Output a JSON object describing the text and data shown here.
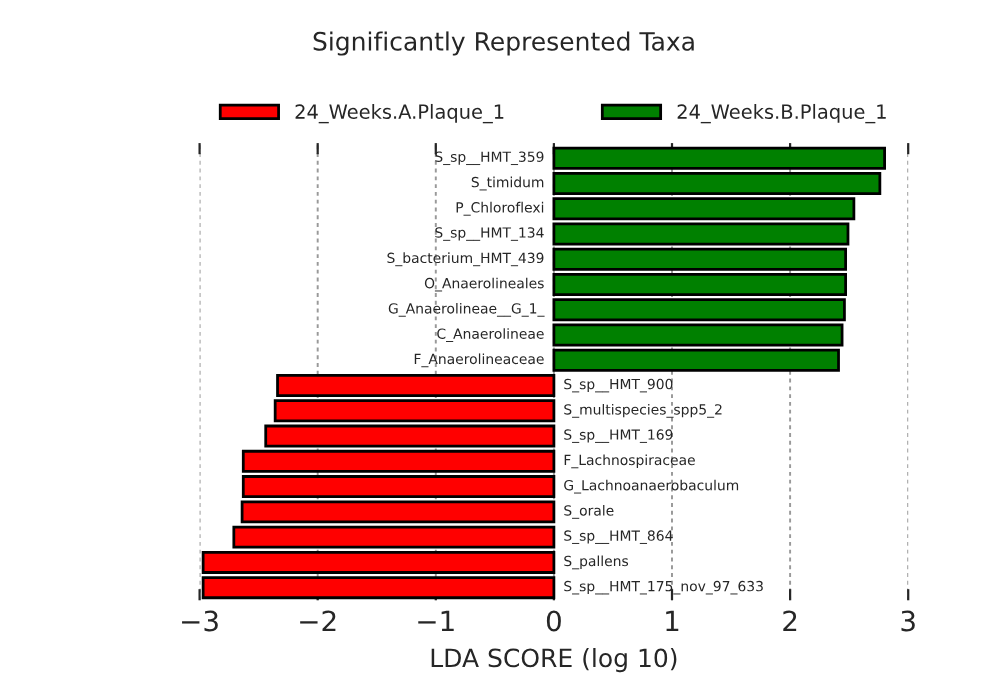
{
  "chart_data": {
    "type": "bar",
    "orientation": "horizontal",
    "title": "Significantly Represented Taxa",
    "xlabel": "LDA SCORE (log 10)",
    "categories": [
      "S_sp__HMT_359",
      "S_timidum",
      "P_Chloroflexi",
      "S_sp__HMT_134",
      "S_bacterium_HMT_439",
      "O_Anaerolineales",
      "G_Anaerolineae__G_1_",
      "C_Anaerolineae",
      "F_Anaerolineaceae",
      "S_sp__HMT_900",
      "S_multispecies_spp5_2",
      "S_sp__HMT_169",
      "F_Lachnospiraceae",
      "G_Lachnoanaerobaculum",
      "S_orale",
      "S_sp__HMT_864",
      "S_pallens",
      "S_sp__HMT_175_nov_97_633"
    ],
    "series": [
      {
        "name": "24_Weeks.A.Plaque_1",
        "color": "#ff0000",
        "values": [
          null,
          null,
          null,
          null,
          null,
          null,
          null,
          null,
          null,
          -2.34,
          -2.36,
          -2.44,
          -2.63,
          -2.63,
          -2.64,
          -2.71,
          -2.97,
          -2.97
        ]
      },
      {
        "name": "24_Weeks.B.Plaque_1",
        "color": "#008000",
        "values": [
          2.8,
          2.76,
          2.54,
          2.49,
          2.47,
          2.47,
          2.46,
          2.44,
          2.41,
          null,
          null,
          null,
          null,
          null,
          null,
          null,
          null,
          null
        ]
      }
    ],
    "xlim": [
      -3,
      3
    ],
    "xticks": [
      {
        "value": -3,
        "label": "−3"
      },
      {
        "value": -2,
        "label": "−2"
      },
      {
        "value": -1,
        "label": "−1"
      },
      0,
      1,
      2,
      3
    ],
    "grid": "x",
    "legend": "top",
    "tick_labels": "x"
  }
}
